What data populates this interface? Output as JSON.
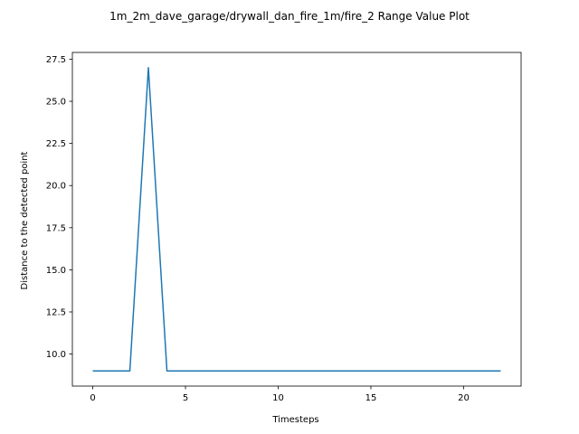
{
  "chart_data": {
    "type": "line",
    "title": "1m_2m_dave_garage/drywall_dan_fire_1m/fire_2 Range Value Plot",
    "xlabel": "Timesteps",
    "ylabel": "Distance to the detected point",
    "xlim": [
      -1.1,
      23.1
    ],
    "ylim": [
      8.1,
      27.9
    ],
    "xticks": [
      0,
      5,
      10,
      15,
      20
    ],
    "yticks": [
      10.0,
      12.5,
      15.0,
      17.5,
      20.0,
      22.5,
      25.0,
      27.5
    ],
    "xtick_labels": [
      "0",
      "5",
      "10",
      "15",
      "20"
    ],
    "ytick_labels": [
      "10.0",
      "12.5",
      "15.0",
      "17.5",
      "20.0",
      "22.5",
      "25.0",
      "27.5"
    ],
    "grid": false,
    "series": [
      {
        "color": "#1f77b4",
        "x": [
          0,
          1,
          2,
          3,
          4,
          5,
          6,
          7,
          8,
          9,
          10,
          11,
          12,
          13,
          14,
          15,
          16,
          17,
          18,
          19,
          20,
          21,
          22
        ],
        "y": [
          9,
          9,
          9,
          27,
          9,
          9,
          9,
          9,
          9,
          9,
          9,
          9,
          9,
          9,
          9,
          9,
          9,
          9,
          9,
          9,
          9,
          9,
          9
        ]
      }
    ]
  }
}
